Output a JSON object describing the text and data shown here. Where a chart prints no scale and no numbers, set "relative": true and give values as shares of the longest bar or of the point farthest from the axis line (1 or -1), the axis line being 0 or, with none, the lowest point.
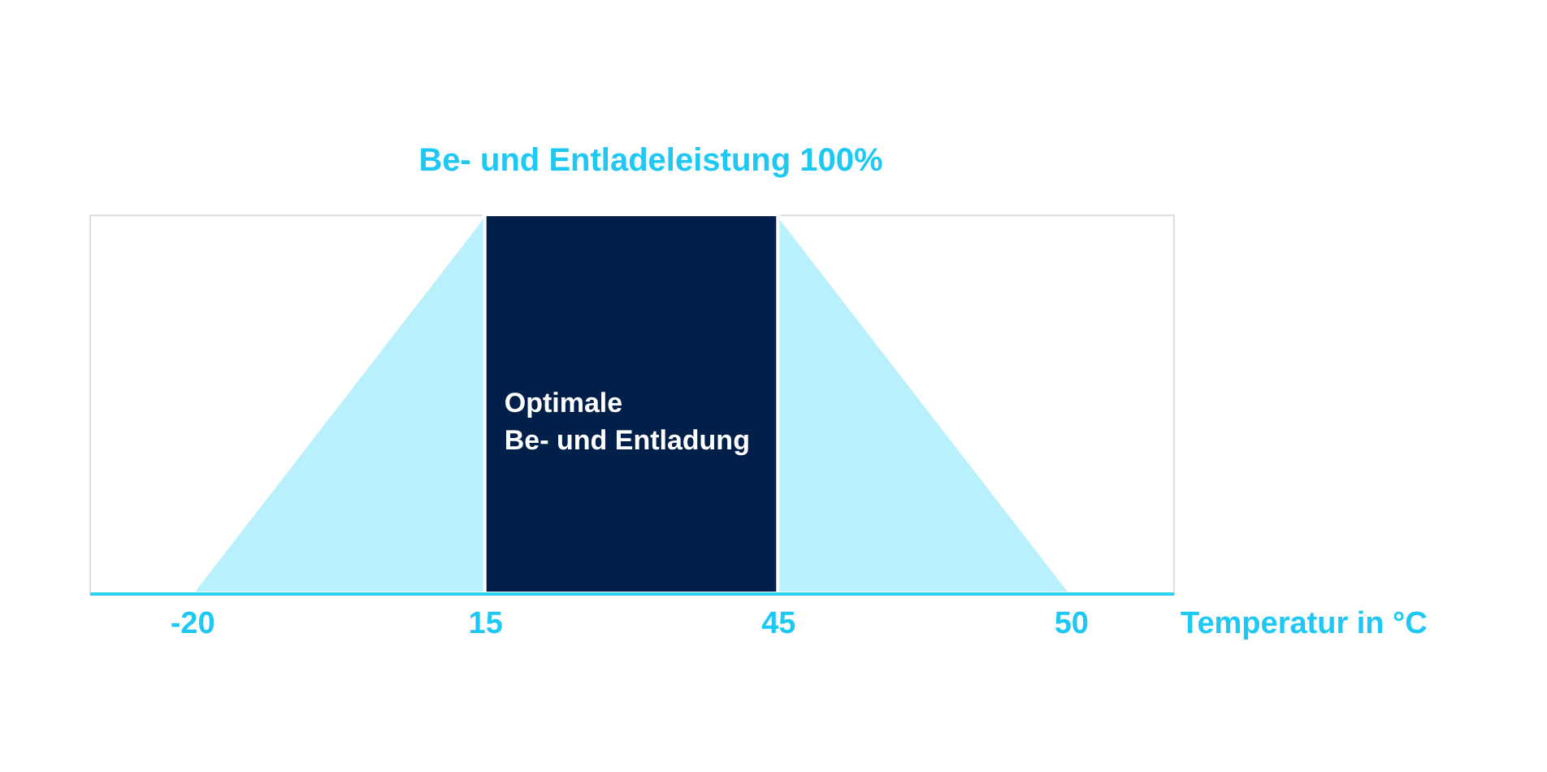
{
  "chart_data": {
    "type": "area",
    "title": "Be- und Entladeleistung 100%",
    "xlabel": "Temperatur in °C",
    "categories": [
      "-20",
      "15",
      "45",
      "50"
    ],
    "relative": true,
    "series": [
      {
        "color": "#b8f0fc",
        "values": [
          0,
          1,
          1,
          0
        ]
      },
      {
        "name": "Optimale Be- und Entladung",
        "color": "#002049",
        "values": [
          null,
          1,
          1,
          null
        ]
      }
    ],
    "grid": false,
    "legend": false
  }
}
